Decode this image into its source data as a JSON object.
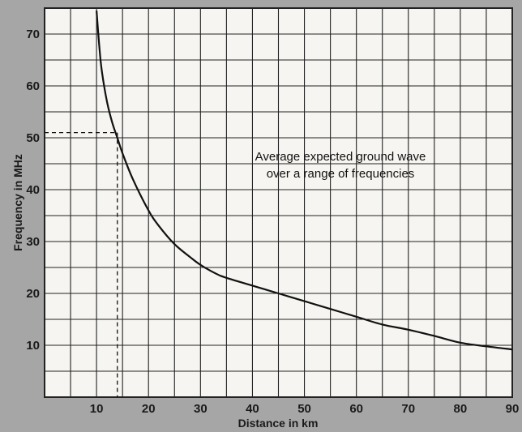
{
  "chart_data": {
    "type": "line",
    "title": "",
    "xlabel": "Distance in km",
    "ylabel": "Frequency in MHz",
    "xlim": [
      0,
      90
    ],
    "ylim": [
      0,
      75
    ],
    "x_ticks": [
      10,
      20,
      30,
      40,
      50,
      60,
      70,
      80,
      90
    ],
    "y_ticks": [
      10,
      20,
      30,
      40,
      50,
      60,
      70
    ],
    "grid": true,
    "series": [
      {
        "x": [
          10,
          10.5,
          11,
          12,
          13,
          14,
          15,
          17,
          20,
          22,
          25,
          28,
          30,
          33,
          35,
          40,
          45,
          50,
          55,
          60,
          65,
          70,
          75,
          80,
          85,
          90
        ],
        "y": [
          74.5,
          68,
          63,
          57,
          53,
          50,
          47,
          42,
          36,
          33,
          29.5,
          27,
          25.5,
          23.8,
          23,
          21.5,
          20,
          18.5,
          17,
          15.5,
          14,
          13,
          11.8,
          10.5,
          9.8,
          9.2
        ]
      }
    ],
    "reference": {
      "x": 14,
      "y": 51
    },
    "annotation": {
      "line1": "Average expected ground wave",
      "line2": "over a range of frequencies"
    },
    "colors": {
      "background": "#a6a6a6",
      "plot_area": "#f6f5f1",
      "grid": "#222222",
      "curve": "#111111"
    }
  }
}
